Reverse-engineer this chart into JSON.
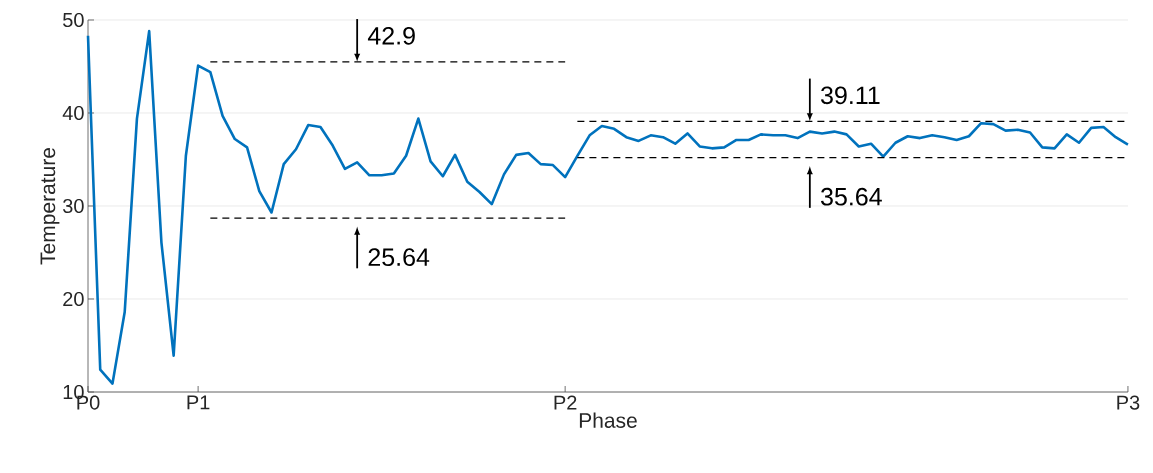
{
  "chart_data": {
    "type": "line",
    "xlabel": "Phase",
    "ylabel": "Temperature",
    "categories": [
      "P0",
      null,
      null,
      null,
      null,
      null,
      null,
      null,
      null,
      "P1",
      null,
      null,
      null,
      null,
      null,
      null,
      null,
      null,
      null,
      null,
      null,
      null,
      null,
      null,
      null,
      null,
      null,
      null,
      null,
      null,
      null,
      null,
      null,
      null,
      null,
      null,
      null,
      null,
      null,
      "P2",
      null,
      null,
      null,
      null,
      null,
      null,
      null,
      null,
      null,
      null,
      null,
      null,
      null,
      null,
      null,
      null,
      null,
      null,
      null,
      null,
      null,
      null,
      null,
      null,
      null,
      null,
      null,
      null,
      null,
      null,
      null,
      null,
      null,
      null,
      null,
      null,
      null,
      null,
      null,
      null,
      null,
      null,
      null,
      null,
      null,
      "P3"
    ],
    "ylim": [
      10,
      50
    ],
    "yticks": [
      10,
      20,
      30,
      40,
      50
    ],
    "grid": "y",
    "marker": "none",
    "series": [
      {
        "color": "#0072bd",
        "values": [
          48.3,
          12.4,
          10.9,
          18.6,
          39.4,
          48.8,
          26.1,
          13.9,
          35.4,
          45.1,
          44.4,
          39.7,
          37.2,
          36.3,
          31.6,
          29.3,
          34.5,
          36.1,
          38.7,
          38.5,
          36.5,
          34.0,
          34.7,
          33.3,
          33.3,
          33.5,
          35.4,
          39.4,
          34.8,
          33.2,
          35.5,
          32.6,
          31.5,
          30.2,
          33.4,
          35.5,
          35.7,
          34.5,
          34.4,
          33.1,
          35.4,
          37.6,
          38.6,
          38.3,
          37.4,
          37.0,
          37.6,
          37.4,
          36.7,
          37.8,
          36.4,
          36.2,
          36.3,
          37.1,
          37.1,
          37.7,
          37.6,
          37.6,
          37.3,
          38.0,
          37.8,
          38.0,
          37.7,
          36.4,
          36.7,
          35.3,
          36.8,
          37.5,
          37.3,
          37.6,
          37.4,
          37.1,
          37.5,
          38.9,
          38.8,
          38.1,
          38.2,
          37.9,
          36.3,
          36.2,
          37.7,
          36.8,
          38.4,
          38.5,
          37.4,
          36.6
        ]
      },
      {
        "type": "line",
        "color": "#000000",
        "line_style": "dashed",
        "values": [
          null,
          null,
          null,
          null,
          null,
          null,
          null,
          null,
          null,
          null,
          45.5,
          45.5,
          45.5,
          45.5,
          45.5,
          45.5,
          45.5,
          45.5,
          45.5,
          45.5,
          45.5,
          45.5,
          45.5,
          45.5,
          45.5,
          45.5,
          45.5,
          45.5,
          45.5,
          45.5,
          45.5,
          45.5,
          45.5,
          45.5,
          45.5,
          45.5,
          45.5,
          45.5,
          45.5,
          45.5,
          null,
          null,
          null,
          null,
          null,
          null,
          null,
          null,
          null,
          null,
          null,
          null,
          null,
          null,
          null,
          null,
          null,
          null,
          null,
          null,
          null,
          null,
          null,
          null,
          null,
          null,
          null,
          null,
          null,
          null,
          null,
          null,
          null,
          null,
          null,
          null,
          null,
          null,
          null,
          null,
          null,
          null,
          null,
          null,
          null,
          null
        ]
      },
      {
        "type": "line",
        "color": "#000000",
        "line_style": "dashed",
        "values": [
          null,
          null,
          null,
          null,
          null,
          null,
          null,
          null,
          null,
          null,
          28.7,
          28.7,
          28.7,
          28.7,
          28.7,
          28.7,
          28.7,
          28.7,
          28.7,
          28.7,
          28.7,
          28.7,
          28.7,
          28.7,
          28.7,
          28.7,
          28.7,
          28.7,
          28.7,
          28.7,
          28.7,
          28.7,
          28.7,
          28.7,
          28.7,
          28.7,
          28.7,
          28.7,
          28.7,
          28.7,
          null,
          null,
          null,
          null,
          null,
          null,
          null,
          null,
          null,
          null,
          null,
          null,
          null,
          null,
          null,
          null,
          null,
          null,
          null,
          null,
          null,
          null,
          null,
          null,
          null,
          null,
          null,
          null,
          null,
          null,
          null,
          null,
          null,
          null,
          null,
          null,
          null,
          null,
          null,
          null,
          null,
          null,
          null,
          null,
          null,
          null
        ]
      },
      {
        "type": "line",
        "color": "#000000",
        "line_style": "dashed",
        "values": [
          null,
          null,
          null,
          null,
          null,
          null,
          null,
          null,
          null,
          null,
          null,
          null,
          null,
          null,
          null,
          null,
          null,
          null,
          null,
          null,
          null,
          null,
          null,
          null,
          null,
          null,
          null,
          null,
          null,
          null,
          null,
          null,
          null,
          null,
          null,
          null,
          null,
          null,
          null,
          null,
          39.1,
          39.1,
          39.1,
          39.1,
          39.1,
          39.1,
          39.1,
          39.1,
          39.1,
          39.1,
          39.1,
          39.1,
          39.1,
          39.1,
          39.1,
          39.1,
          39.1,
          39.1,
          39.1,
          39.1,
          39.1,
          39.1,
          39.1,
          39.1,
          39.1,
          39.1,
          39.1,
          39.1,
          39.1,
          39.1,
          39.1,
          39.1,
          39.1,
          39.1,
          39.1,
          39.1,
          39.1,
          39.1,
          39.1,
          39.1,
          39.1,
          39.1,
          39.1,
          39.1,
          39.1,
          39.1
        ]
      },
      {
        "type": "line",
        "color": "#000000",
        "line_style": "dashed",
        "values": [
          null,
          null,
          null,
          null,
          null,
          null,
          null,
          null,
          null,
          null,
          null,
          null,
          null,
          null,
          null,
          null,
          null,
          null,
          null,
          null,
          null,
          null,
          null,
          null,
          null,
          null,
          null,
          null,
          null,
          null,
          null,
          null,
          null,
          null,
          null,
          null,
          null,
          null,
          null,
          null,
          35.2,
          35.2,
          35.2,
          35.2,
          35.2,
          35.2,
          35.2,
          35.2,
          35.2,
          35.2,
          35.2,
          35.2,
          35.2,
          35.2,
          35.2,
          35.2,
          35.2,
          35.2,
          35.2,
          35.2,
          35.2,
          35.2,
          35.2,
          35.2,
          35.2,
          35.2,
          35.2,
          35.2,
          35.2,
          35.2,
          35.2,
          35.2,
          35.2,
          35.2,
          35.2,
          35.2,
          35.2,
          35.2,
          35.2,
          35.2,
          35.2,
          35.2,
          35.2,
          35.2,
          35.2,
          35.2
        ]
      }
    ],
    "annotations": [
      {
        "text": "42.9",
        "y": 45.5
      },
      {
        "text": "25.64",
        "y": 28.7
      },
      {
        "text": "39.11",
        "y": 39.1
      },
      {
        "text": "35.64",
        "y": 35.2
      }
    ]
  }
}
